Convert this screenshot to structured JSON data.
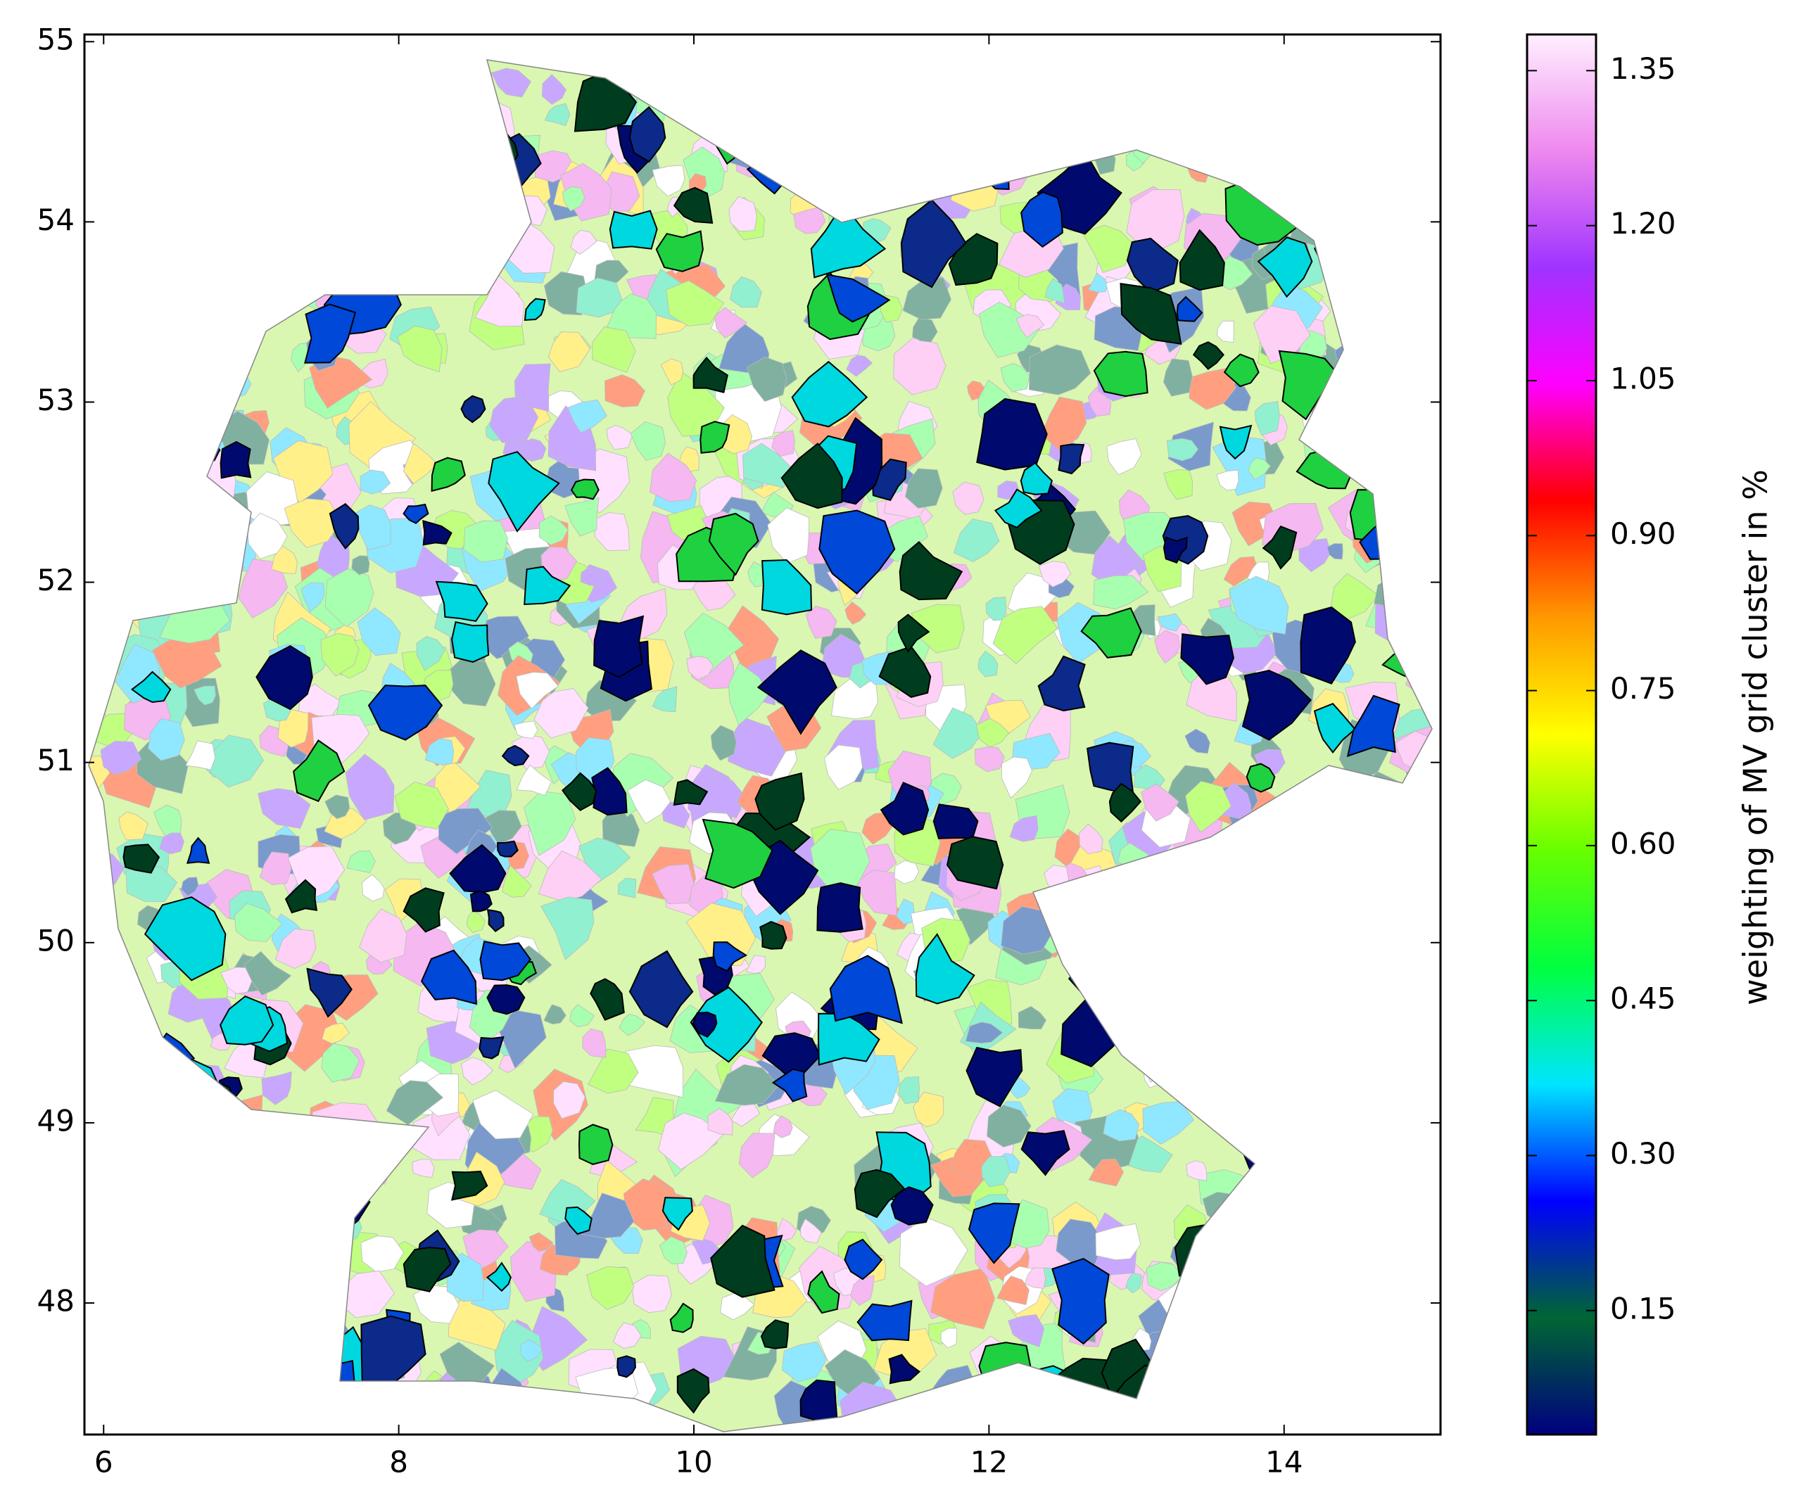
{
  "chart_data": {
    "type": "map",
    "xlim": [
      5.87,
      15.06
    ],
    "xticks": [
      6,
      8,
      10,
      12,
      14
    ],
    "ylim": [
      47.27,
      55.04
    ],
    "yticks": [
      48,
      49,
      50,
      51,
      52,
      53,
      54,
      55
    ],
    "colorbar": {
      "label": "weighting of MV grid cluster in %",
      "lim": [
        0.03,
        1.385
      ],
      "ticks": [
        0.15,
        {
          "value": 0.3,
          "label": "0.30"
        },
        0.45,
        {
          "value": 0.6,
          "label": "0.60"
        },
        0.75,
        {
          "value": 0.9,
          "label": "0.90"
        },
        1.05,
        {
          "value": 1.2,
          "label": "1.20"
        },
        1.35
      ],
      "colormap": [
        "#000080",
        "#006633",
        "#0000ff",
        "#00e5ff",
        "#00ff40",
        "#66ff00",
        "#ffff00",
        "#ff9900",
        "#ff0000",
        "#ff00ff",
        "#a033ff",
        "#ee88ee",
        "#fff0ff"
      ]
    }
  }
}
